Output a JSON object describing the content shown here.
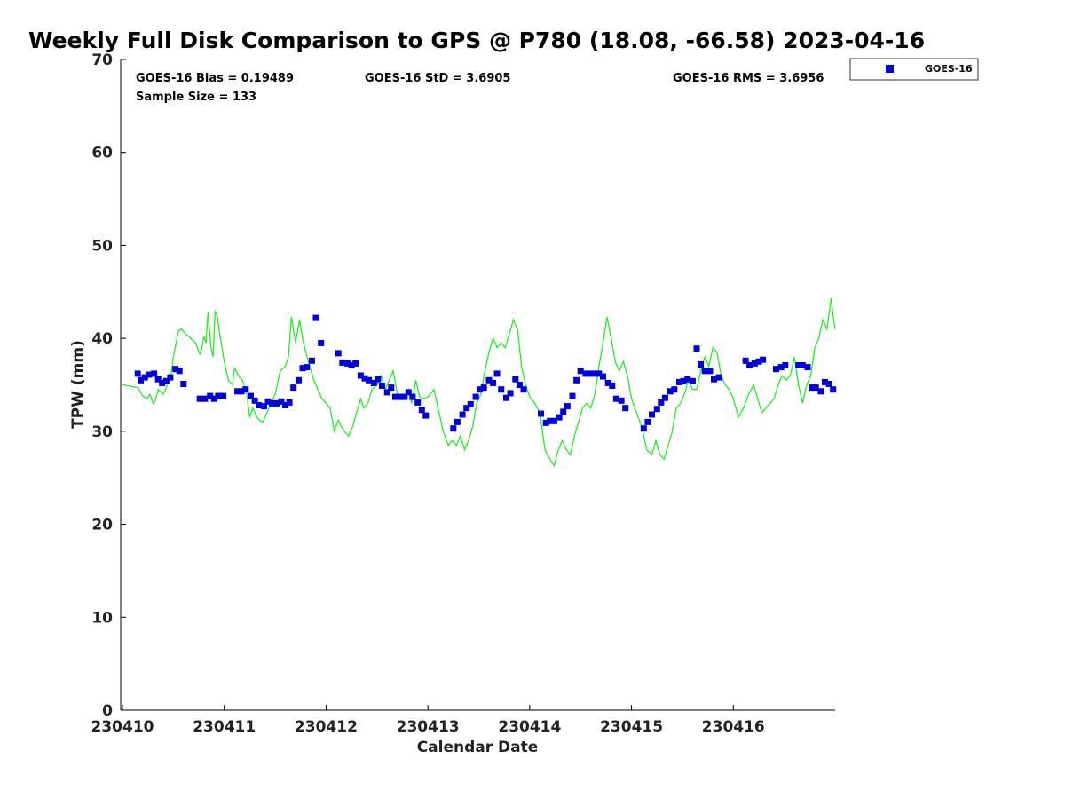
{
  "chart_data": {
    "type": "scatter",
    "title": "Weekly Full Disk Comparison to GPS @ P780 (18.08, -66.58) 2023-04-16",
    "xlabel": "Calendar Date",
    "ylabel": "TPW (mm)",
    "ylim": [
      0,
      70
    ],
    "yticks": [
      0,
      10,
      20,
      30,
      40,
      50,
      60,
      70
    ],
    "xlim": [
      "230410",
      "230417"
    ],
    "xticks": [
      "230410",
      "230411",
      "230412",
      "230413",
      "230414",
      "230415",
      "230416"
    ],
    "grid": false,
    "legend": {
      "position": "top-right",
      "entries": [
        "GOES-16"
      ]
    },
    "stats": {
      "bias": "GOES-16 Bias = 0.19489",
      "std": "GOES-16 StD = 3.6905",
      "rms": "GOES-16 RMS = 3.6956",
      "sample": "Sample Size = 133"
    },
    "colors": {
      "goes": "#0000dd",
      "gps": "#22ee22"
    },
    "series": [
      {
        "name": "GOES-16",
        "marker": "square",
        "x_days": [
          0.15,
          0.18,
          0.22,
          0.26,
          0.31,
          0.35,
          0.39,
          0.43,
          0.47,
          0.52,
          0.56,
          0.6,
          0.76,
          0.81,
          0.86,
          0.9,
          0.94,
          0.99,
          1.13,
          1.17,
          1.21,
          1.26,
          1.3,
          1.34,
          1.39,
          1.43,
          1.47,
          1.52,
          1.56,
          1.6,
          1.64,
          1.68,
          1.73,
          1.77,
          1.81,
          1.86,
          1.9,
          1.95,
          2.12,
          2.16,
          2.21,
          2.25,
          2.29,
          2.34,
          2.38,
          2.42,
          2.47,
          2.51,
          2.55,
          2.6,
          2.64,
          2.68,
          2.73,
          2.77,
          2.81,
          2.85,
          2.9,
          2.94,
          2.98,
          3.25,
          3.29,
          3.34,
          3.38,
          3.42,
          3.47,
          3.51,
          3.55,
          3.6,
          3.64,
          3.68,
          3.72,
          3.77,
          3.81,
          3.86,
          3.9,
          3.94,
          4.11,
          4.16,
          4.2,
          4.24,
          4.29,
          4.33,
          4.37,
          4.42,
          4.46,
          4.5,
          4.55,
          4.59,
          4.64,
          4.68,
          4.72,
          4.77,
          4.81,
          4.85,
          4.9,
          4.94,
          5.12,
          5.16,
          5.2,
          5.25,
          5.29,
          5.33,
          5.38,
          5.42,
          5.47,
          5.51,
          5.55,
          5.6,
          5.64,
          5.68,
          5.72,
          5.77,
          5.81,
          5.86,
          6.12,
          6.16,
          6.21,
          6.25,
          6.29,
          6.42,
          6.47,
          6.51,
          6.64,
          6.68,
          6.73,
          6.77,
          6.81,
          6.86,
          6.9,
          6.94,
          6.98
        ],
        "y": [
          36.2,
          35.5,
          35.8,
          36.1,
          36.2,
          35.6,
          35.2,
          35.4,
          35.8,
          36.7,
          36.5,
          35.1,
          33.5,
          33.5,
          33.8,
          33.5,
          33.8,
          33.8,
          34.3,
          34.3,
          34.5,
          33.8,
          33.3,
          32.8,
          32.7,
          33.2,
          33.0,
          33.0,
          33.2,
          32.8,
          33.1,
          34.7,
          35.5,
          36.8,
          36.9,
          37.6,
          42.2,
          39.5,
          38.4,
          37.4,
          37.3,
          37.1,
          37.3,
          36.0,
          35.7,
          35.5,
          35.2,
          35.6,
          34.9,
          34.2,
          34.7,
          33.7,
          33.7,
          33.7,
          34.2,
          33.7,
          33.1,
          32.3,
          31.7,
          30.3,
          31.0,
          31.8,
          32.5,
          32.9,
          33.7,
          34.5,
          34.7,
          35.5,
          35.2,
          36.2,
          34.5,
          33.6,
          34.1,
          35.6,
          35.0,
          34.5,
          31.9,
          30.9,
          31.1,
          31.1,
          31.5,
          32.1,
          32.7,
          33.8,
          35.5,
          36.5,
          36.2,
          36.2,
          36.2,
          36.2,
          35.9,
          35.2,
          34.9,
          33.5,
          33.3,
          32.5,
          30.3,
          31.0,
          31.8,
          32.4,
          33.1,
          33.6,
          34.3,
          34.5,
          35.3,
          35.4,
          35.6,
          35.4,
          38.9,
          37.2,
          36.5,
          36.5,
          35.6,
          35.8,
          37.6,
          37.1,
          37.3,
          37.5,
          37.7,
          36.7,
          36.9,
          37.1,
          37.1,
          37.1,
          36.9,
          34.7,
          34.7,
          34.3,
          35.3,
          35.1,
          34.5
        ]
      },
      {
        "name": "",
        "line": true,
        "x_days": [
          0.0,
          0.15,
          0.2,
          0.24,
          0.27,
          0.3,
          0.32,
          0.35,
          0.4,
          0.44,
          0.47,
          0.5,
          0.55,
          0.58,
          0.62,
          0.67,
          0.72,
          0.76,
          0.78,
          0.8,
          0.82,
          0.84,
          0.87,
          0.89,
          0.91,
          0.93,
          0.95,
          0.97,
          1.0,
          1.04,
          1.08,
          1.1,
          1.15,
          1.18,
          1.22,
          1.25,
          1.28,
          1.32,
          1.35,
          1.38,
          1.42,
          1.46,
          1.5,
          1.55,
          1.6,
          1.63,
          1.66,
          1.7,
          1.74,
          1.77,
          1.8,
          1.84,
          1.88,
          1.92,
          1.96,
          2.0,
          2.04,
          2.08,
          2.12,
          2.15,
          2.18,
          2.22,
          2.26,
          2.3,
          2.34,
          2.37,
          2.41,
          2.45,
          2.5,
          2.54,
          2.58,
          2.62,
          2.66,
          2.7,
          2.74,
          2.78,
          2.81,
          2.84,
          2.88,
          2.92,
          2.96,
          3.0,
          3.06,
          3.1,
          3.15,
          3.2,
          3.24,
          3.28,
          3.32,
          3.36,
          3.4,
          3.44,
          3.48,
          3.52,
          3.56,
          3.6,
          3.64,
          3.68,
          3.72,
          3.76,
          3.8,
          3.84,
          3.88,
          3.92,
          3.96,
          4.0,
          4.05,
          4.1,
          4.15,
          4.2,
          4.24,
          4.28,
          4.32,
          4.36,
          4.4,
          4.44,
          4.48,
          4.52,
          4.56,
          4.6,
          4.64,
          4.68,
          4.72,
          4.76,
          4.8,
          4.84,
          4.88,
          4.92,
          4.96,
          5.0,
          5.05,
          5.1,
          5.15,
          5.2,
          5.24,
          5.28,
          5.32,
          5.36,
          5.4,
          5.44,
          5.48,
          5.52,
          5.56,
          5.6,
          5.64,
          5.68,
          5.72,
          5.76,
          5.8,
          5.84,
          5.88,
          5.92,
          5.96,
          6.0,
          6.05,
          6.1,
          6.15,
          6.2,
          6.24,
          6.28,
          6.32,
          6.36,
          6.4,
          6.44,
          6.48,
          6.52,
          6.56,
          6.6,
          6.64,
          6.68,
          6.72,
          6.76,
          6.8,
          6.84,
          6.88,
          6.92,
          6.96,
          6.98,
          7.0
        ],
        "y": [
          35.0,
          34.7,
          33.8,
          33.5,
          34.0,
          33.0,
          33.2,
          34.5,
          34.0,
          35.0,
          35.5,
          38.0,
          40.8,
          41.0,
          40.5,
          40.0,
          39.5,
          38.3,
          39.0,
          40.2,
          39.5,
          42.8,
          39.0,
          38.0,
          42.9,
          42.5,
          40.8,
          39.5,
          37.5,
          35.5,
          35.0,
          36.8,
          35.8,
          35.5,
          34.0,
          31.5,
          32.5,
          31.5,
          31.2,
          31.0,
          32.0,
          33.0,
          34.0,
          36.5,
          37.0,
          38.0,
          42.3,
          39.5,
          42.0,
          40.0,
          38.5,
          37.0,
          35.5,
          34.5,
          33.5,
          33.0,
          32.5,
          30.0,
          31.2,
          30.5,
          30.0,
          29.5,
          30.5,
          32.0,
          33.5,
          32.5,
          33.0,
          34.5,
          35.0,
          36.0,
          34.5,
          35.5,
          36.5,
          34.0,
          33.5,
          33.5,
          34.5,
          33.0,
          35.5,
          33.7,
          33.5,
          33.7,
          34.5,
          32.5,
          30.0,
          28.5,
          29.0,
          28.5,
          29.5,
          28.0,
          29.0,
          30.5,
          33.0,
          34.0,
          36.5,
          38.5,
          40.0,
          39.0,
          39.5,
          39.0,
          40.5,
          42.0,
          41.0,
          37.0,
          35.0,
          33.7,
          33.0,
          32.0,
          28.0,
          27.0,
          26.3,
          28.0,
          29.0,
          28.0,
          27.5,
          29.5,
          31.0,
          32.5,
          33.0,
          32.5,
          34.0,
          37.0,
          39.5,
          42.3,
          40.0,
          37.5,
          36.5,
          37.5,
          36.0,
          33.5,
          32.0,
          30.5,
          28.0,
          27.5,
          29.0,
          27.5,
          27.0,
          28.5,
          30.0,
          32.5,
          33.0,
          34.0,
          35.5,
          34.5,
          34.5,
          36.5,
          38.0,
          37.0,
          39.0,
          38.5,
          36.0,
          35.0,
          34.5,
          33.5,
          31.5,
          32.5,
          34.0,
          35.0,
          33.5,
          32.0,
          32.5,
          33.0,
          33.5,
          35.0,
          36.0,
          35.5,
          36.0,
          38.0,
          35.0,
          33.0,
          35.0,
          36.0,
          39.0,
          40.0,
          42.0,
          41.0,
          44.3,
          42.5,
          41.0
        ]
      }
    ]
  }
}
